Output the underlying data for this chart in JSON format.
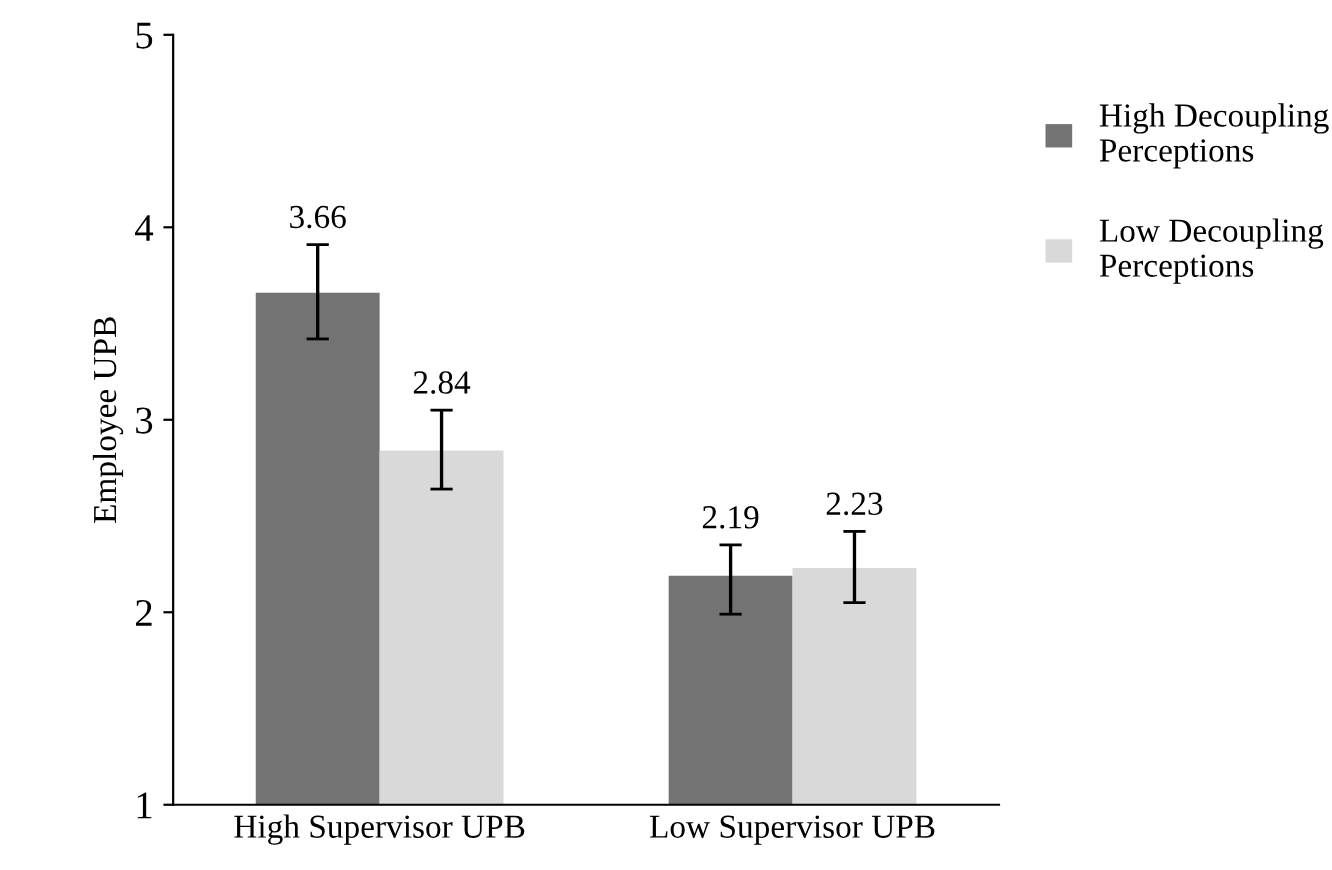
{
  "chart_data": {
    "type": "bar",
    "ylabel": "Employee UPB",
    "categories": [
      "High Supervisor UPB",
      "Low Supervisor UPB"
    ],
    "series": [
      {
        "name": "High Decoupling Perceptions",
        "color": "#737373",
        "values": [
          3.66,
          2.19
        ],
        "errors": [
          [
            3.42,
            3.91
          ],
          [
            1.99,
            2.35
          ]
        ],
        "value_labels": [
          "3.66",
          "2.19"
        ]
      },
      {
        "name": "Low Decoupling Perceptions",
        "color": "#d9d9d9",
        "values": [
          2.84,
          2.23
        ],
        "errors": [
          [
            2.64,
            3.05
          ],
          [
            2.05,
            2.42
          ]
        ],
        "value_labels": [
          "2.84",
          "2.23"
        ]
      }
    ],
    "ylim": [
      1,
      5
    ],
    "yticks": [
      1,
      2,
      3,
      4,
      5
    ],
    "grid": false,
    "legend": "top right"
  }
}
